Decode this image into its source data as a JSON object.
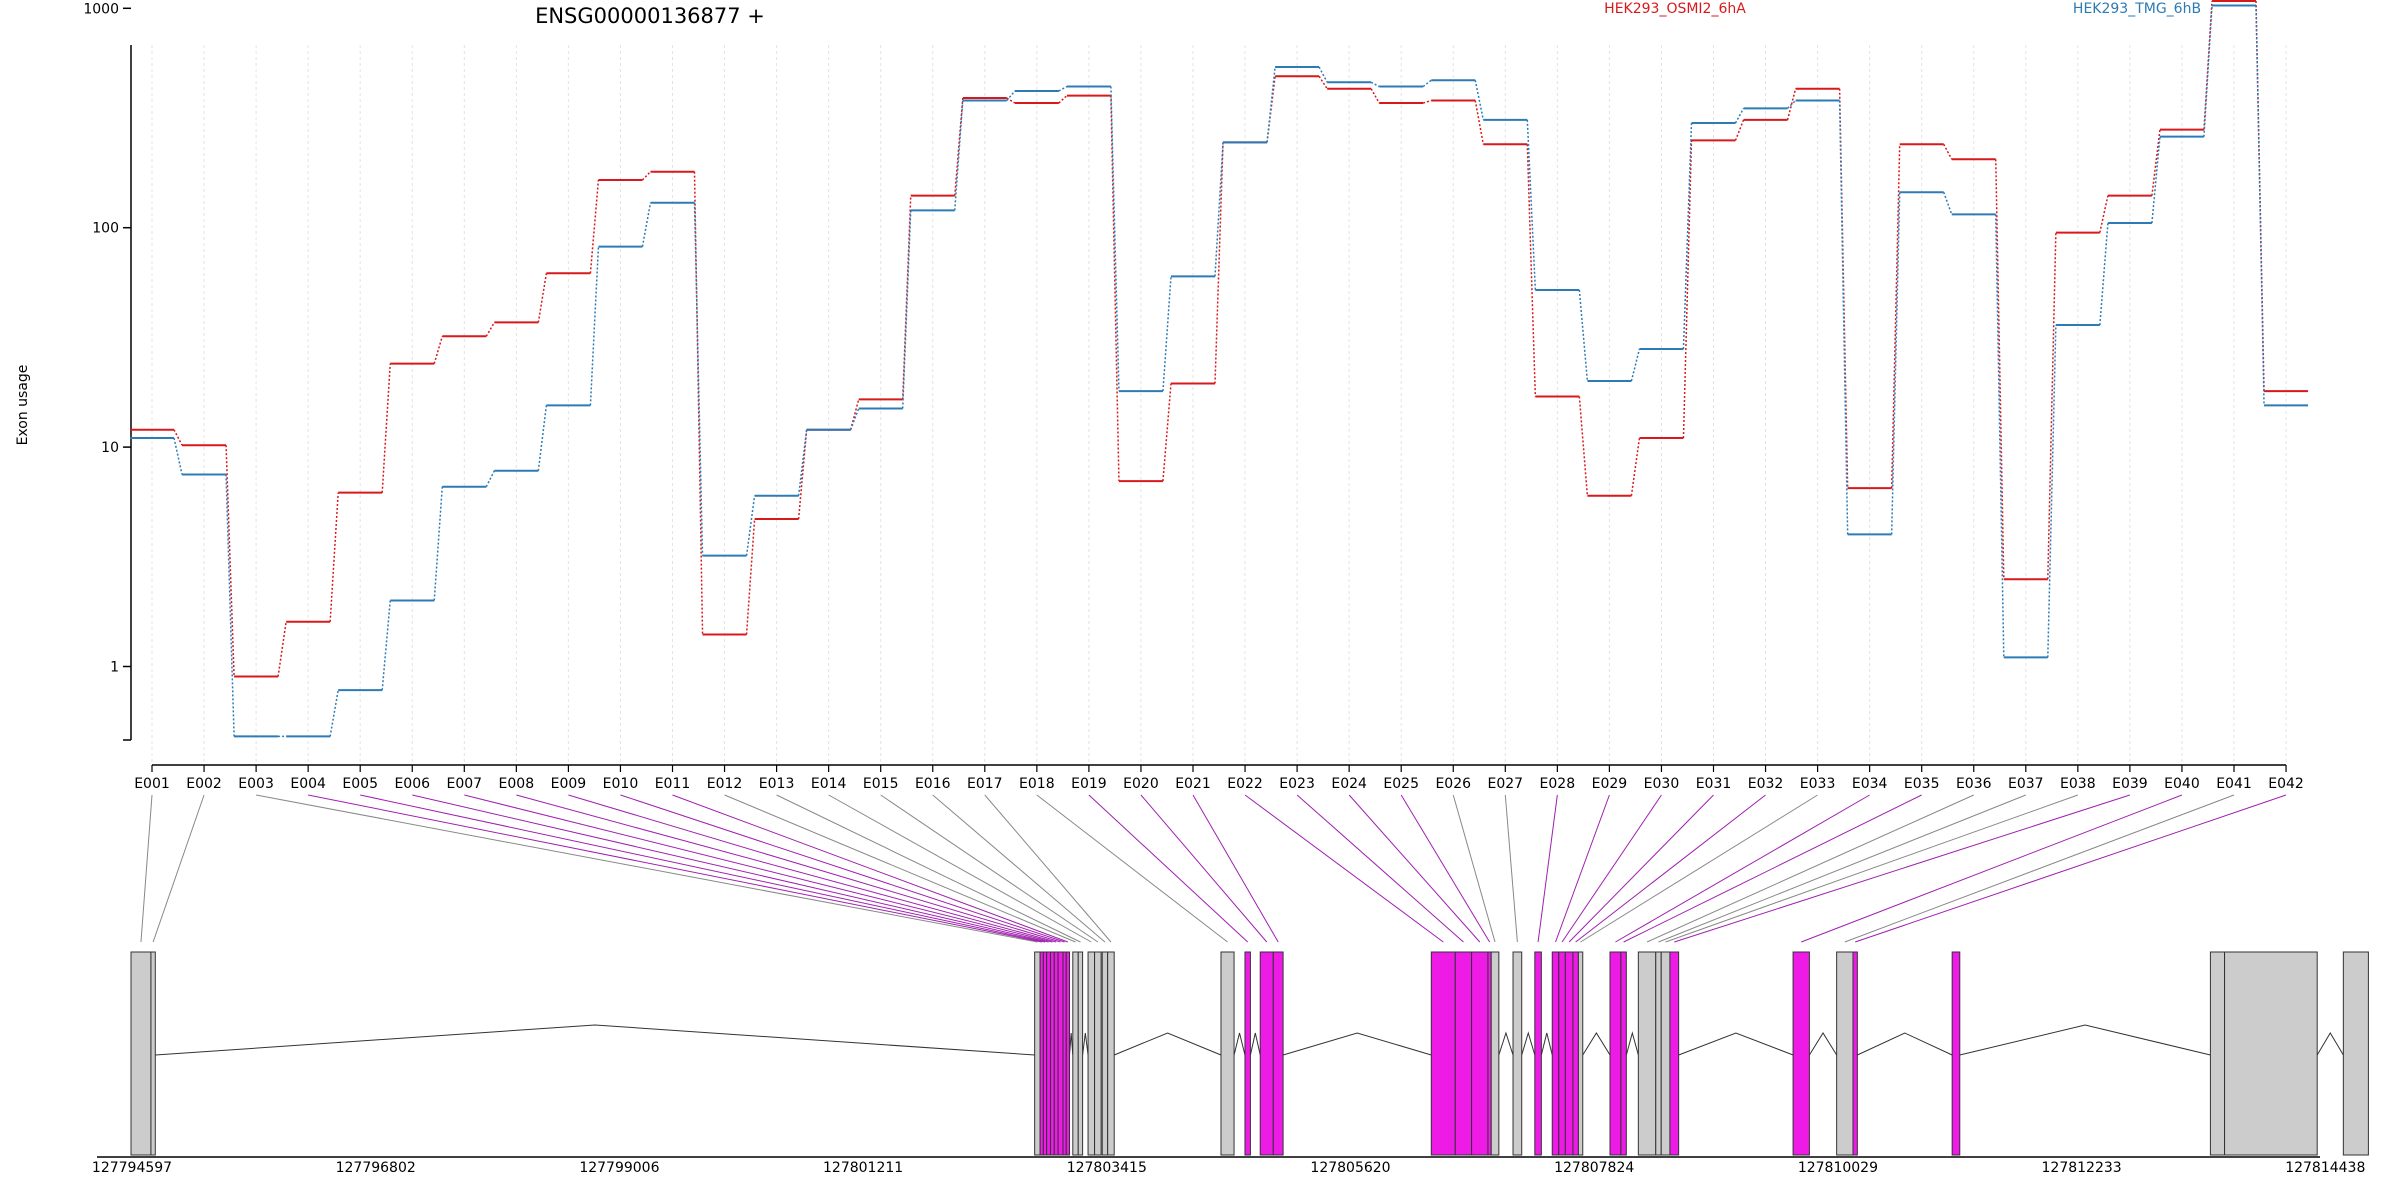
{
  "chart_data": {
    "type": "line",
    "title": "ENSG00000136877 +",
    "ylabel": "Exon usage",
    "yscale": "log",
    "ylim": [
      0.4,
      1600
    ],
    "yticks": [
      1,
      10,
      100,
      1000
    ],
    "ytick_labels": [
      "1",
      "10",
      "100",
      "1000"
    ],
    "grid": "vertical dotted lines at each exon",
    "legend_placement": "top",
    "colors": {
      "HEK293_OSMI2_6hA": "#d7191c",
      "HEK293_TMG_6hB": "#2c7bb6",
      "intron_line": "#333333",
      "exon_default_fill": "#cccccc",
      "exon_significant_fill": "#ee1be7",
      "connector_default": "#888888",
      "connector_significant": "#a020b0"
    },
    "categories": [
      "E001",
      "E002",
      "E003",
      "E004",
      "E005",
      "E006",
      "E007",
      "E008",
      "E009",
      "E010",
      "E011",
      "E012",
      "E013",
      "E014",
      "E015",
      "E016",
      "E017",
      "E018",
      "E019",
      "E020",
      "E021",
      "E022",
      "E023",
      "E024",
      "E025",
      "E026",
      "E027",
      "E028",
      "E029",
      "E030",
      "E031",
      "E032",
      "E033",
      "E034",
      "E035",
      "E036",
      "E037",
      "E038",
      "E039",
      "E040",
      "E041",
      "E042"
    ],
    "series": [
      {
        "name": "HEK293_OSMI2_6hA",
        "color": "#d7191c",
        "values": [
          12,
          10.2,
          0.9,
          1.6,
          6.2,
          24,
          32,
          37,
          62,
          165,
          180,
          1.4,
          4.7,
          12,
          16.5,
          140,
          390,
          370,
          400,
          7,
          19.5,
          245,
          490,
          430,
          370,
          380,
          240,
          17,
          6,
          11,
          250,
          310,
          430,
          6.5,
          240,
          205,
          2.5,
          95,
          140,
          280,
          1080,
          18
        ]
      },
      {
        "name": "HEK293_TMG_6hB",
        "color": "#2c7bb6",
        "values": [
          11,
          7.5,
          0.48,
          0.48,
          0.78,
          2.0,
          6.6,
          7.8,
          15.5,
          82,
          130,
          3.2,
          6.0,
          12,
          15,
          120,
          380,
          420,
          440,
          18,
          60,
          245,
          540,
          460,
          440,
          470,
          310,
          52,
          20,
          28,
          300,
          350,
          380,
          4,
          145,
          115,
          1.1,
          36,
          105,
          260,
          1030,
          15.5
        ]
      }
    ],
    "gene_model": {
      "coordinate_labels": [
        "127794597",
        "127796802",
        "127799006",
        "127801211",
        "127803415",
        "127805620",
        "127807824",
        "127810029",
        "127812233",
        "127814438"
      ],
      "exons": [
        {
          "id": "E001",
          "start": 127794597,
          "end": 127794780,
          "significant": false
        },
        {
          "id": "E002",
          "start": 127794780,
          "end": 127794820,
          "significant": false
        },
        {
          "id": "E003",
          "start": 127802890,
          "end": 127802940,
          "significant": false
        },
        {
          "id": "E004",
          "start": 127802940,
          "end": 127802970,
          "significant": true
        },
        {
          "id": "E005",
          "start": 127802970,
          "end": 127803000,
          "significant": true
        },
        {
          "id": "E006",
          "start": 127803000,
          "end": 127803035,
          "significant": true
        },
        {
          "id": "E007",
          "start": 127803035,
          "end": 127803070,
          "significant": true
        },
        {
          "id": "E008",
          "start": 127803070,
          "end": 127803105,
          "significant": true
        },
        {
          "id": "E009",
          "start": 127803105,
          "end": 127803150,
          "significant": true
        },
        {
          "id": "E010",
          "start": 127803150,
          "end": 127803180,
          "significant": true
        },
        {
          "id": "E011",
          "start": 127803180,
          "end": 127803210,
          "significant": true
        },
        {
          "id": "E012",
          "start": 127803240,
          "end": 127803290,
          "significant": false
        },
        {
          "id": "E013",
          "start": 127803290,
          "end": 127803330,
          "significant": false
        },
        {
          "id": "E014",
          "start": 127803380,
          "end": 127803440,
          "significant": false
        },
        {
          "id": "E015",
          "start": 127803440,
          "end": 127803500,
          "significant": false
        },
        {
          "id": "E016",
          "start": 127803510,
          "end": 127803560,
          "significant": false
        },
        {
          "id": "E017",
          "start": 127803560,
          "end": 127803620,
          "significant": false
        },
        {
          "id": "E018",
          "start": 127804600,
          "end": 127804720,
          "significant": false
        },
        {
          "id": "E019",
          "start": 127804820,
          "end": 127804870,
          "significant": true
        },
        {
          "id": "E020",
          "start": 127804960,
          "end": 127805080,
          "significant": true
        },
        {
          "id": "E021",
          "start": 127805080,
          "end": 127805170,
          "significant": true
        },
        {
          "id": "E022",
          "start": 127806530,
          "end": 127806750,
          "significant": true
        },
        {
          "id": "E023",
          "start": 127806750,
          "end": 127806900,
          "significant": true
        },
        {
          "id": "E024",
          "start": 127806900,
          "end": 127807050,
          "significant": true
        },
        {
          "id": "E025",
          "start": 127807050,
          "end": 127807080,
          "significant": true
        },
        {
          "id": "E026",
          "start": 127807080,
          "end": 127807150,
          "significant": false
        },
        {
          "id": "E027",
          "start": 127807280,
          "end": 127807360,
          "significant": false
        },
        {
          "id": "E028",
          "start": 127807480,
          "end": 127807540,
          "significant": true
        },
        {
          "id": "E029",
          "start": 127807640,
          "end": 127807700,
          "significant": true
        },
        {
          "id": "E030",
          "start": 127807700,
          "end": 127807760,
          "significant": true
        },
        {
          "id": "E031",
          "start": 127807760,
          "end": 127807830,
          "significant": true
        },
        {
          "id": "E032",
          "start": 127807830,
          "end": 127807880,
          "significant": true
        },
        {
          "id": "E033",
          "start": 127807880,
          "end": 127807920,
          "significant": false
        },
        {
          "id": "E034",
          "start": 127808170,
          "end": 127808270,
          "significant": true
        },
        {
          "id": "E035",
          "start": 127808270,
          "end": 127808320,
          "significant": true
        },
        {
          "id": "E036",
          "start": 127808430,
          "end": 127808590,
          "significant": false
        },
        {
          "id": "E037",
          "start": 127808590,
          "end": 127808640,
          "significant": false
        },
        {
          "id": "E038",
          "start": 127808640,
          "end": 127808720,
          "significant": false
        },
        {
          "id": "E039",
          "start": 127808720,
          "end": 127808800,
          "significant": true
        },
        {
          "id": "E040",
          "start": 127809850,
          "end": 127810000,
          "significant": true
        },
        {
          "id": "E041",
          "start": 127810250,
          "end": 127810400,
          "significant": false
        },
        {
          "id": "E042",
          "start": 127810400,
          "end": 127810440,
          "significant": true
        }
      ],
      "tail_exons": [
        {
          "id": "E040b",
          "start": 127811310,
          "end": 127811380,
          "significant": true
        },
        {
          "id": "E041b",
          "start": 127813680,
          "end": 127813810,
          "significant": false
        },
        {
          "id": "E041c",
          "start": 127813810,
          "end": 127814660,
          "significant": false
        },
        {
          "id": "E042b",
          "start": 127814900,
          "end": 127815130,
          "significant": false
        }
      ]
    }
  }
}
